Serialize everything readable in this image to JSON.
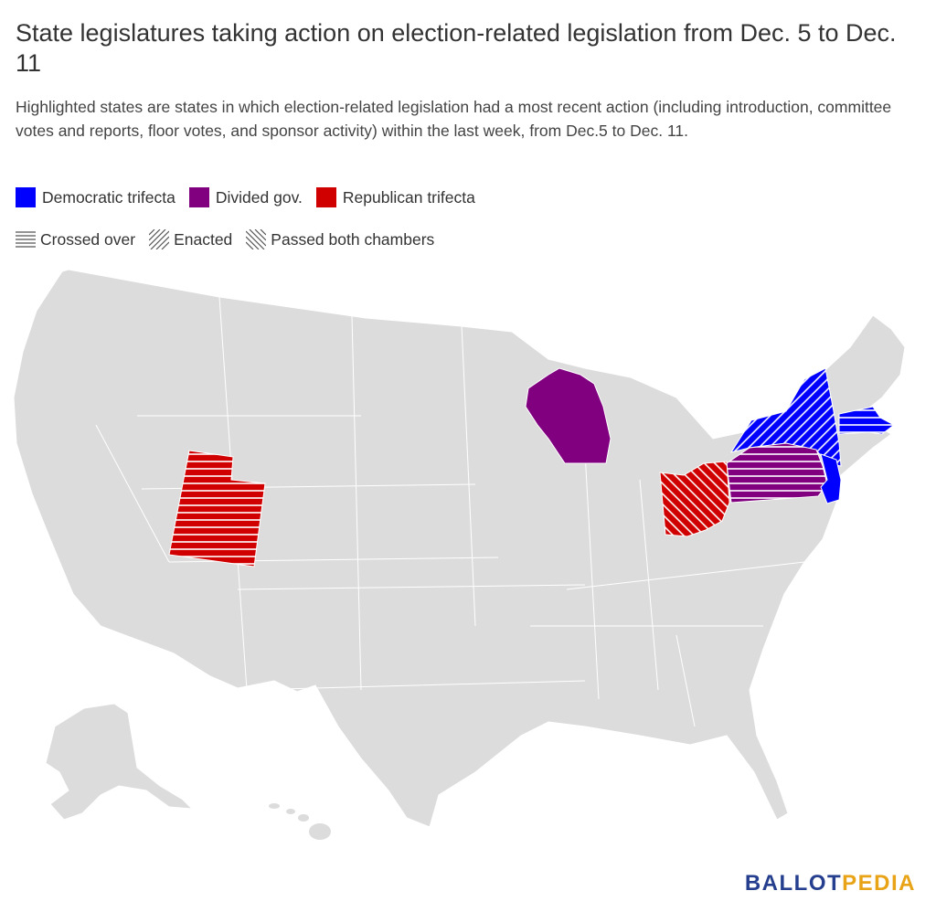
{
  "title": "State legislatures taking action on election-related legislation from Dec. 5 to Dec. 11",
  "subtitle": "Highlighted states are states in which election-related legislation had a most recent action (including introduction, committee votes and reports, floor votes, and sponsor activity) within the last week, from Dec.5 to Dec. 11.",
  "legend": {
    "colors": [
      {
        "label": "Democratic trifecta",
        "color": "#0000ff"
      },
      {
        "label": "Divided gov.",
        "color": "#800080"
      },
      {
        "label": "Republican trifecta",
        "color": "#d00000"
      }
    ],
    "patterns": [
      {
        "label": "Crossed over",
        "pattern": "horizontal-lines"
      },
      {
        "label": "Enacted",
        "pattern": "forward-diagonal"
      },
      {
        "label": "Passed both chambers",
        "pattern": "backward-diagonal"
      }
    ]
  },
  "map": {
    "base_color": "#dcdcdc",
    "highlighted_states": [
      {
        "state": "Wisconsin",
        "category": "Divided gov.",
        "pattern": "none"
      },
      {
        "state": "Pennsylvania",
        "category": "Divided gov.",
        "pattern": "horizontal-lines"
      },
      {
        "state": "New York",
        "category": "Democratic trifecta",
        "pattern": "forward-diagonal"
      },
      {
        "state": "Massachusetts",
        "category": "Democratic trifecta",
        "pattern": "horizontal-lines"
      },
      {
        "state": "New Jersey",
        "category": "Democratic trifecta",
        "pattern": "none"
      },
      {
        "state": "Utah",
        "category": "Republican trifecta",
        "pattern": "horizontal-lines"
      },
      {
        "state": "Ohio",
        "category": "Republican trifecta",
        "pattern": "backward-diagonal"
      }
    ]
  },
  "brand": {
    "part1": "BALLOT",
    "part2": "PEDIA"
  }
}
